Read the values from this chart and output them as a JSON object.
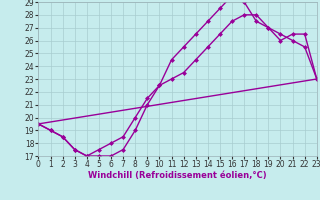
{
  "xlabel": "Windchill (Refroidissement éolien,°C)",
  "xlim": [
    0,
    23
  ],
  "ylim": [
    17,
    29
  ],
  "xticks": [
    0,
    1,
    2,
    3,
    4,
    5,
    6,
    7,
    8,
    9,
    10,
    11,
    12,
    13,
    14,
    15,
    16,
    17,
    18,
    19,
    20,
    21,
    22,
    23
  ],
  "yticks": [
    17,
    18,
    19,
    20,
    21,
    22,
    23,
    24,
    25,
    26,
    27,
    28,
    29
  ],
  "bg_color": "#c6eced",
  "grid_color": "#a8cdd0",
  "line_color": "#990099",
  "line1_x": [
    0,
    1,
    2,
    3,
    4,
    5,
    6,
    7,
    8,
    9,
    10,
    11,
    12,
    13,
    14,
    15,
    16,
    17,
    18,
    19,
    20,
    21,
    22,
    23
  ],
  "line1_y": [
    19.5,
    19.0,
    18.5,
    17.5,
    17.0,
    17.0,
    17.0,
    17.5,
    19.0,
    21.0,
    22.5,
    24.5,
    25.5,
    26.5,
    27.5,
    28.5,
    29.5,
    29.0,
    27.5,
    27.0,
    26.0,
    26.5,
    26.5,
    23.0
  ],
  "line2_x": [
    0,
    1,
    2,
    3,
    4,
    5,
    6,
    7,
    8,
    9,
    10,
    11,
    12,
    13,
    14,
    15,
    16,
    17,
    18,
    19,
    20,
    21,
    22,
    23
  ],
  "line2_y": [
    19.5,
    19.0,
    18.5,
    17.5,
    17.0,
    17.5,
    18.0,
    18.5,
    20.0,
    21.5,
    22.5,
    23.0,
    23.5,
    24.5,
    25.5,
    26.5,
    27.5,
    28.0,
    28.0,
    27.0,
    26.5,
    26.0,
    25.5,
    23.0
  ],
  "line3_x": [
    0,
    23
  ],
  "line3_y": [
    19.5,
    23.0
  ],
  "marker": "D",
  "marker_size": 2.5,
  "line_width": 1.0,
  "tick_fontsize": 5.5,
  "xlabel_fontsize": 6.0
}
